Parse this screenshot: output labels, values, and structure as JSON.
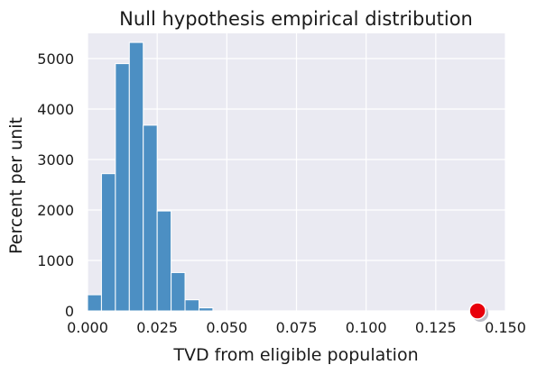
{
  "chart_data": {
    "type": "bar",
    "title": "Null hypothesis empirical distribution",
    "xlabel": "TVD from eligible population",
    "ylabel": "Percent per unit",
    "xlim": [
      0,
      0.15
    ],
    "ylim": [
      0,
      5500
    ],
    "xticks": [
      "0.000",
      "0.025",
      "0.050",
      "0.075",
      "0.100",
      "0.125",
      "0.150"
    ],
    "yticks": [
      "0",
      "1000",
      "2000",
      "3000",
      "4000",
      "5000"
    ],
    "grid": true,
    "bin_width": 0.005,
    "bins": [
      {
        "start": 0.0,
        "end": 0.005,
        "value": 320
      },
      {
        "start": 0.005,
        "end": 0.01,
        "value": 2720
      },
      {
        "start": 0.01,
        "end": 0.015,
        "value": 4900
      },
      {
        "start": 0.015,
        "end": 0.02,
        "value": 5320
      },
      {
        "start": 0.02,
        "end": 0.025,
        "value": 3680
      },
      {
        "start": 0.025,
        "end": 0.03,
        "value": 1980
      },
      {
        "start": 0.03,
        "end": 0.035,
        "value": 760
      },
      {
        "start": 0.035,
        "end": 0.04,
        "value": 220
      },
      {
        "start": 0.04,
        "end": 0.045,
        "value": 60
      }
    ],
    "observed_point": {
      "x": 0.14,
      "y": 0
    },
    "colors": {
      "bars": "#4c8fc3",
      "bar_edge": "#ffffff",
      "plot_background": "#eaeaf2",
      "grid": "#ffffff",
      "point": "#e8000b"
    }
  }
}
